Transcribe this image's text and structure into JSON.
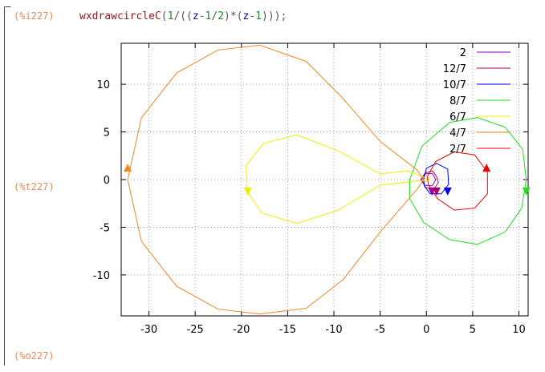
{
  "cell": {
    "input_label": "(%i227)",
    "output_t_label": "(%t227)",
    "output_o_label": "(%o227)",
    "command": {
      "func": "wxdrawcircleC",
      "p1": "(",
      "num1": "1",
      "p2": "/((",
      "var1": "z",
      "op1": "-",
      "num2": "1",
      "op2": "/",
      "num3": "2",
      "p3": ")*(",
      "var2": "z",
      "op3": "-",
      "num4": "1",
      "p4": ")));"
    }
  },
  "chart_data": {
    "type": "line",
    "title": "",
    "xlabel": "",
    "ylabel": "",
    "xlim": [
      -33,
      11
    ],
    "ylim": [
      -14.3,
      14.3
    ],
    "xticks": [
      -30,
      -25,
      -20,
      -15,
      -10,
      -5,
      0,
      5,
      10
    ],
    "yticks": [
      10,
      5,
      0,
      -5,
      -10
    ],
    "grid": true,
    "legend_position": "top-right",
    "series": [
      {
        "name": "2",
        "color": "#8800cc",
        "points": [
          [
            1.0,
            0.0
          ],
          [
            0.65,
            0.65
          ],
          [
            -0.2,
            0.6
          ],
          [
            -0.6,
            0.0
          ],
          [
            -0.2,
            -0.6
          ],
          [
            0.65,
            -0.65
          ],
          [
            1.0,
            0.0
          ]
        ],
        "arrow": [
          0.6,
          -1.25
        ]
      },
      {
        "name": "12/7",
        "color": "#aa0066",
        "points": [
          [
            1.1,
            0.3
          ],
          [
            0.7,
            0.9
          ],
          [
            -0.1,
            0.7
          ],
          [
            -0.5,
            0.0
          ],
          [
            -0.1,
            -0.8
          ],
          [
            0.8,
            -1.0
          ],
          [
            1.3,
            -0.3
          ],
          [
            1.1,
            0.3
          ]
        ],
        "arrow": [
          1.1,
          -1.25
        ]
      },
      {
        "name": "10/7",
        "color": "#0000ee",
        "points": [
          [
            -0.3,
            0.0
          ],
          [
            0.0,
            1.2
          ],
          [
            1.1,
            1.7
          ],
          [
            2.3,
            1.1
          ],
          [
            2.4,
            -0.5
          ],
          [
            1.6,
            -1.5
          ],
          [
            0.4,
            -1.5
          ],
          [
            -0.2,
            -0.7
          ],
          [
            -0.3,
            0.0
          ]
        ],
        "arrow": [
          2.3,
          -1.25
        ]
      },
      {
        "name": "8/7",
        "color": "#22dd22",
        "points": [
          [
            -1.8,
            0.0
          ],
          [
            -0.5,
            3.5
          ],
          [
            2.5,
            6.0
          ],
          [
            5.5,
            6.5
          ],
          [
            8.5,
            5.5
          ],
          [
            10.4,
            3.2
          ],
          [
            10.8,
            0.0
          ],
          [
            10.3,
            -3.0
          ],
          [
            8.5,
            -5.5
          ],
          [
            5.5,
            -6.8
          ],
          [
            2.5,
            -6.3
          ],
          [
            -0.3,
            -4.5
          ],
          [
            -1.8,
            -2.0
          ],
          [
            -1.8,
            0.0
          ]
        ],
        "arrow": [
          10.8,
          -1.25
        ]
      },
      {
        "name": "6/7",
        "color": "#eeee00",
        "points": [
          [
            0.4,
            0.0
          ],
          [
            -2.0,
            0.9
          ],
          [
            -5.0,
            0.6
          ],
          [
            -9.5,
            3.0
          ],
          [
            -14.0,
            4.7
          ],
          [
            -17.6,
            3.8
          ],
          [
            -19.5,
            1.5
          ],
          [
            -19.4,
            -1.2
          ],
          [
            -17.8,
            -3.5
          ],
          [
            -14.0,
            -4.6
          ],
          [
            -9.5,
            -3.2
          ],
          [
            -5.0,
            -0.6
          ],
          [
            -1.5,
            -0.2
          ],
          [
            0.4,
            0.0
          ]
        ],
        "arrow": [
          -19.3,
          -1.25
        ]
      },
      {
        "name": "4/7",
        "color": "#ee8822",
        "points": [
          [
            -0.3,
            0.0
          ],
          [
            -1.0,
            1.0
          ],
          [
            -5.0,
            4.0
          ],
          [
            -9.0,
            8.5
          ],
          [
            -13.0,
            12.4
          ],
          [
            -18.0,
            14.1
          ],
          [
            -22.5,
            13.6
          ],
          [
            -27.0,
            11.2
          ],
          [
            -30.8,
            6.5
          ],
          [
            -32.3,
            0.0
          ],
          [
            -30.8,
            -6.5
          ],
          [
            -27.0,
            -11.2
          ],
          [
            -22.5,
            -13.6
          ],
          [
            -18.0,
            -14.1
          ],
          [
            -13.0,
            -13.5
          ],
          [
            -9.0,
            -10.5
          ],
          [
            -5.0,
            -5.5
          ],
          [
            -1.0,
            -1.0
          ],
          [
            -0.3,
            0.0
          ]
        ],
        "arrow": [
          -32.3,
          1.25
        ]
      },
      {
        "name": "2/7",
        "color": "#ee0000",
        "points": [
          [
            0.1,
            0.3
          ],
          [
            1.0,
            1.9
          ],
          [
            3.0,
            2.9
          ],
          [
            5.2,
            2.6
          ],
          [
            6.6,
            0.8
          ],
          [
            6.6,
            -1.5
          ],
          [
            5.2,
            -3.0
          ],
          [
            3.0,
            -3.2
          ],
          [
            1.2,
            -2.0
          ],
          [
            0.2,
            -0.5
          ],
          [
            0.1,
            0.3
          ]
        ],
        "arrow": [
          6.5,
          1.25
        ]
      }
    ]
  }
}
